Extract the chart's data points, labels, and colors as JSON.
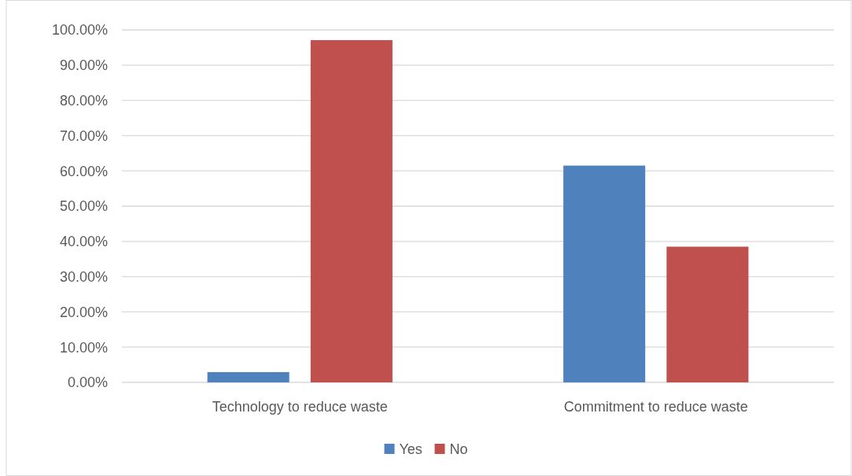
{
  "chart_data": {
    "type": "bar",
    "categories": [
      "Technology to reduce waste",
      "Commitment to reduce waste"
    ],
    "series": [
      {
        "name": "Yes",
        "color": "#4f81bd",
        "values": [
          2.9,
          61.5
        ]
      },
      {
        "name": "No",
        "color": "#c0504d",
        "values": [
          97.1,
          38.5
        ]
      }
    ],
    "ylim": [
      0,
      100
    ],
    "yticks": [
      {
        "value": 0,
        "label": "0.00%"
      },
      {
        "value": 10,
        "label": "10.00%"
      },
      {
        "value": 20,
        "label": "20.00%"
      },
      {
        "value": 30,
        "label": "30.00%"
      },
      {
        "value": 40,
        "label": "40.00%"
      },
      {
        "value": 50,
        "label": "50.00%"
      },
      {
        "value": 60,
        "label": "60.00%"
      },
      {
        "value": 70,
        "label": "70.00%"
      },
      {
        "value": 80,
        "label": "80.00%"
      },
      {
        "value": 90,
        "label": "90.00%"
      },
      {
        "value": 100,
        "label": "100.00%"
      }
    ],
    "grid": "y",
    "legend": "bottom"
  }
}
